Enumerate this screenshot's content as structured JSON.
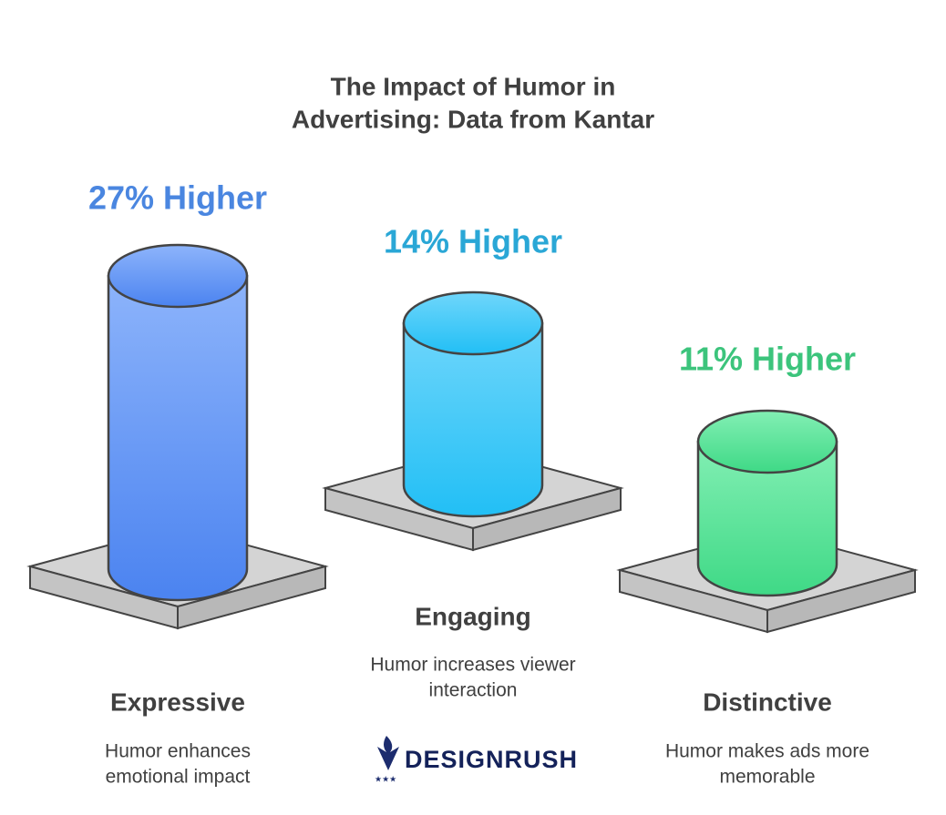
{
  "header": {
    "title": [
      "The Impact of Humor in",
      "Advertising: Data from Kantar"
    ]
  },
  "items": [
    {
      "value_label": "27% Higher",
      "name": "Expressive",
      "description": [
        "Humor enhances",
        "emotional impact"
      ]
    },
    {
      "value_label": "14% Higher",
      "name": "Engaging",
      "description": [
        "Humor increases viewer",
        "interaction"
      ]
    },
    {
      "value_label": "11% Higher",
      "name": "Distinctive",
      "description": [
        "Humor makes ads more",
        "memorable"
      ]
    }
  ],
  "logo": "DESIGNRUSH"
}
